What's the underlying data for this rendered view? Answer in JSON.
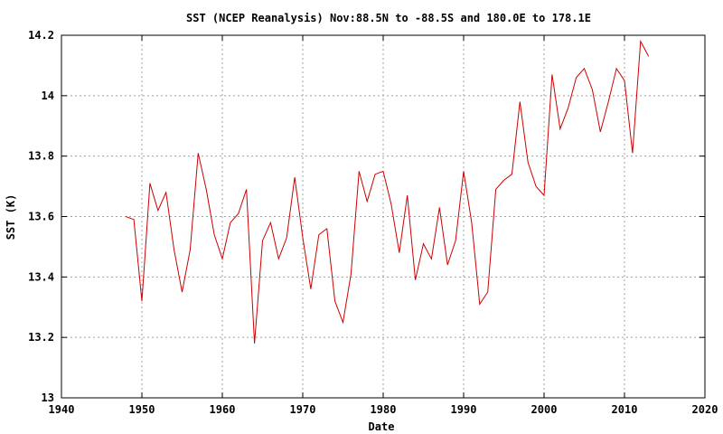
{
  "chart_data": {
    "type": "line",
    "title": "SST (NCEP Reanalysis) Nov:88.5N to -88.5S and 180.0E to 178.1E",
    "xlabel": "Date",
    "ylabel": "SST (K)",
    "xlim": [
      1940,
      2020
    ],
    "ylim": [
      13,
      14.2
    ],
    "xticks": [
      1940,
      1950,
      1960,
      1970,
      1980,
      1990,
      2000,
      2010,
      2020
    ],
    "xtick_labels": [
      "1940",
      "1950",
      "1960",
      "1970",
      "1980",
      "1990",
      "2000",
      "2010",
      "2020"
    ],
    "yticks": [
      13,
      13.2,
      13.4,
      13.6,
      13.8,
      14,
      14.2
    ],
    "ytick_labels": [
      "13",
      "13.2",
      "13.4",
      "13.6",
      "13.8",
      "14",
      "14.2"
    ],
    "grid": true,
    "series": [
      {
        "color": "#cc0000",
        "x": [
          1948,
          1949,
          1950,
          1951,
          1952,
          1953,
          1954,
          1955,
          1956,
          1957,
          1958,
          1959,
          1960,
          1961,
          1962,
          1963,
          1964,
          1965,
          1966,
          1967,
          1968,
          1969,
          1970,
          1971,
          1972,
          1973,
          1974,
          1975,
          1976,
          1977,
          1978,
          1979,
          1980,
          1981,
          1982,
          1983,
          1984,
          1985,
          1986,
          1987,
          1988,
          1989,
          1990,
          1991,
          1992,
          1993,
          1994,
          1995,
          1996,
          1997,
          1998,
          1999,
          2000,
          2001,
          2002,
          2003,
          2004,
          2005,
          2006,
          2007,
          2008,
          2009,
          2010,
          2011,
          2012,
          2013
        ],
        "values": [
          13.6,
          13.59,
          13.32,
          13.71,
          13.62,
          13.68,
          13.49,
          13.35,
          13.49,
          13.81,
          13.69,
          13.54,
          13.46,
          13.58,
          13.61,
          13.69,
          13.18,
          13.52,
          13.58,
          13.46,
          13.53,
          13.73,
          13.53,
          13.36,
          13.54,
          13.56,
          13.32,
          13.25,
          13.41,
          13.75,
          13.65,
          13.74,
          13.75,
          13.64,
          13.48,
          13.67,
          13.39,
          13.51,
          13.46,
          13.63,
          13.44,
          13.52,
          13.75,
          13.58,
          13.31,
          13.35,
          13.69,
          13.72,
          13.74,
          13.98,
          13.78,
          13.7,
          13.67,
          14.07,
          13.89,
          13.96,
          14.06,
          14.09,
          14.02,
          13.88,
          13.98,
          14.09,
          14.05,
          13.81,
          14.18,
          14.13
        ]
      }
    ]
  }
}
